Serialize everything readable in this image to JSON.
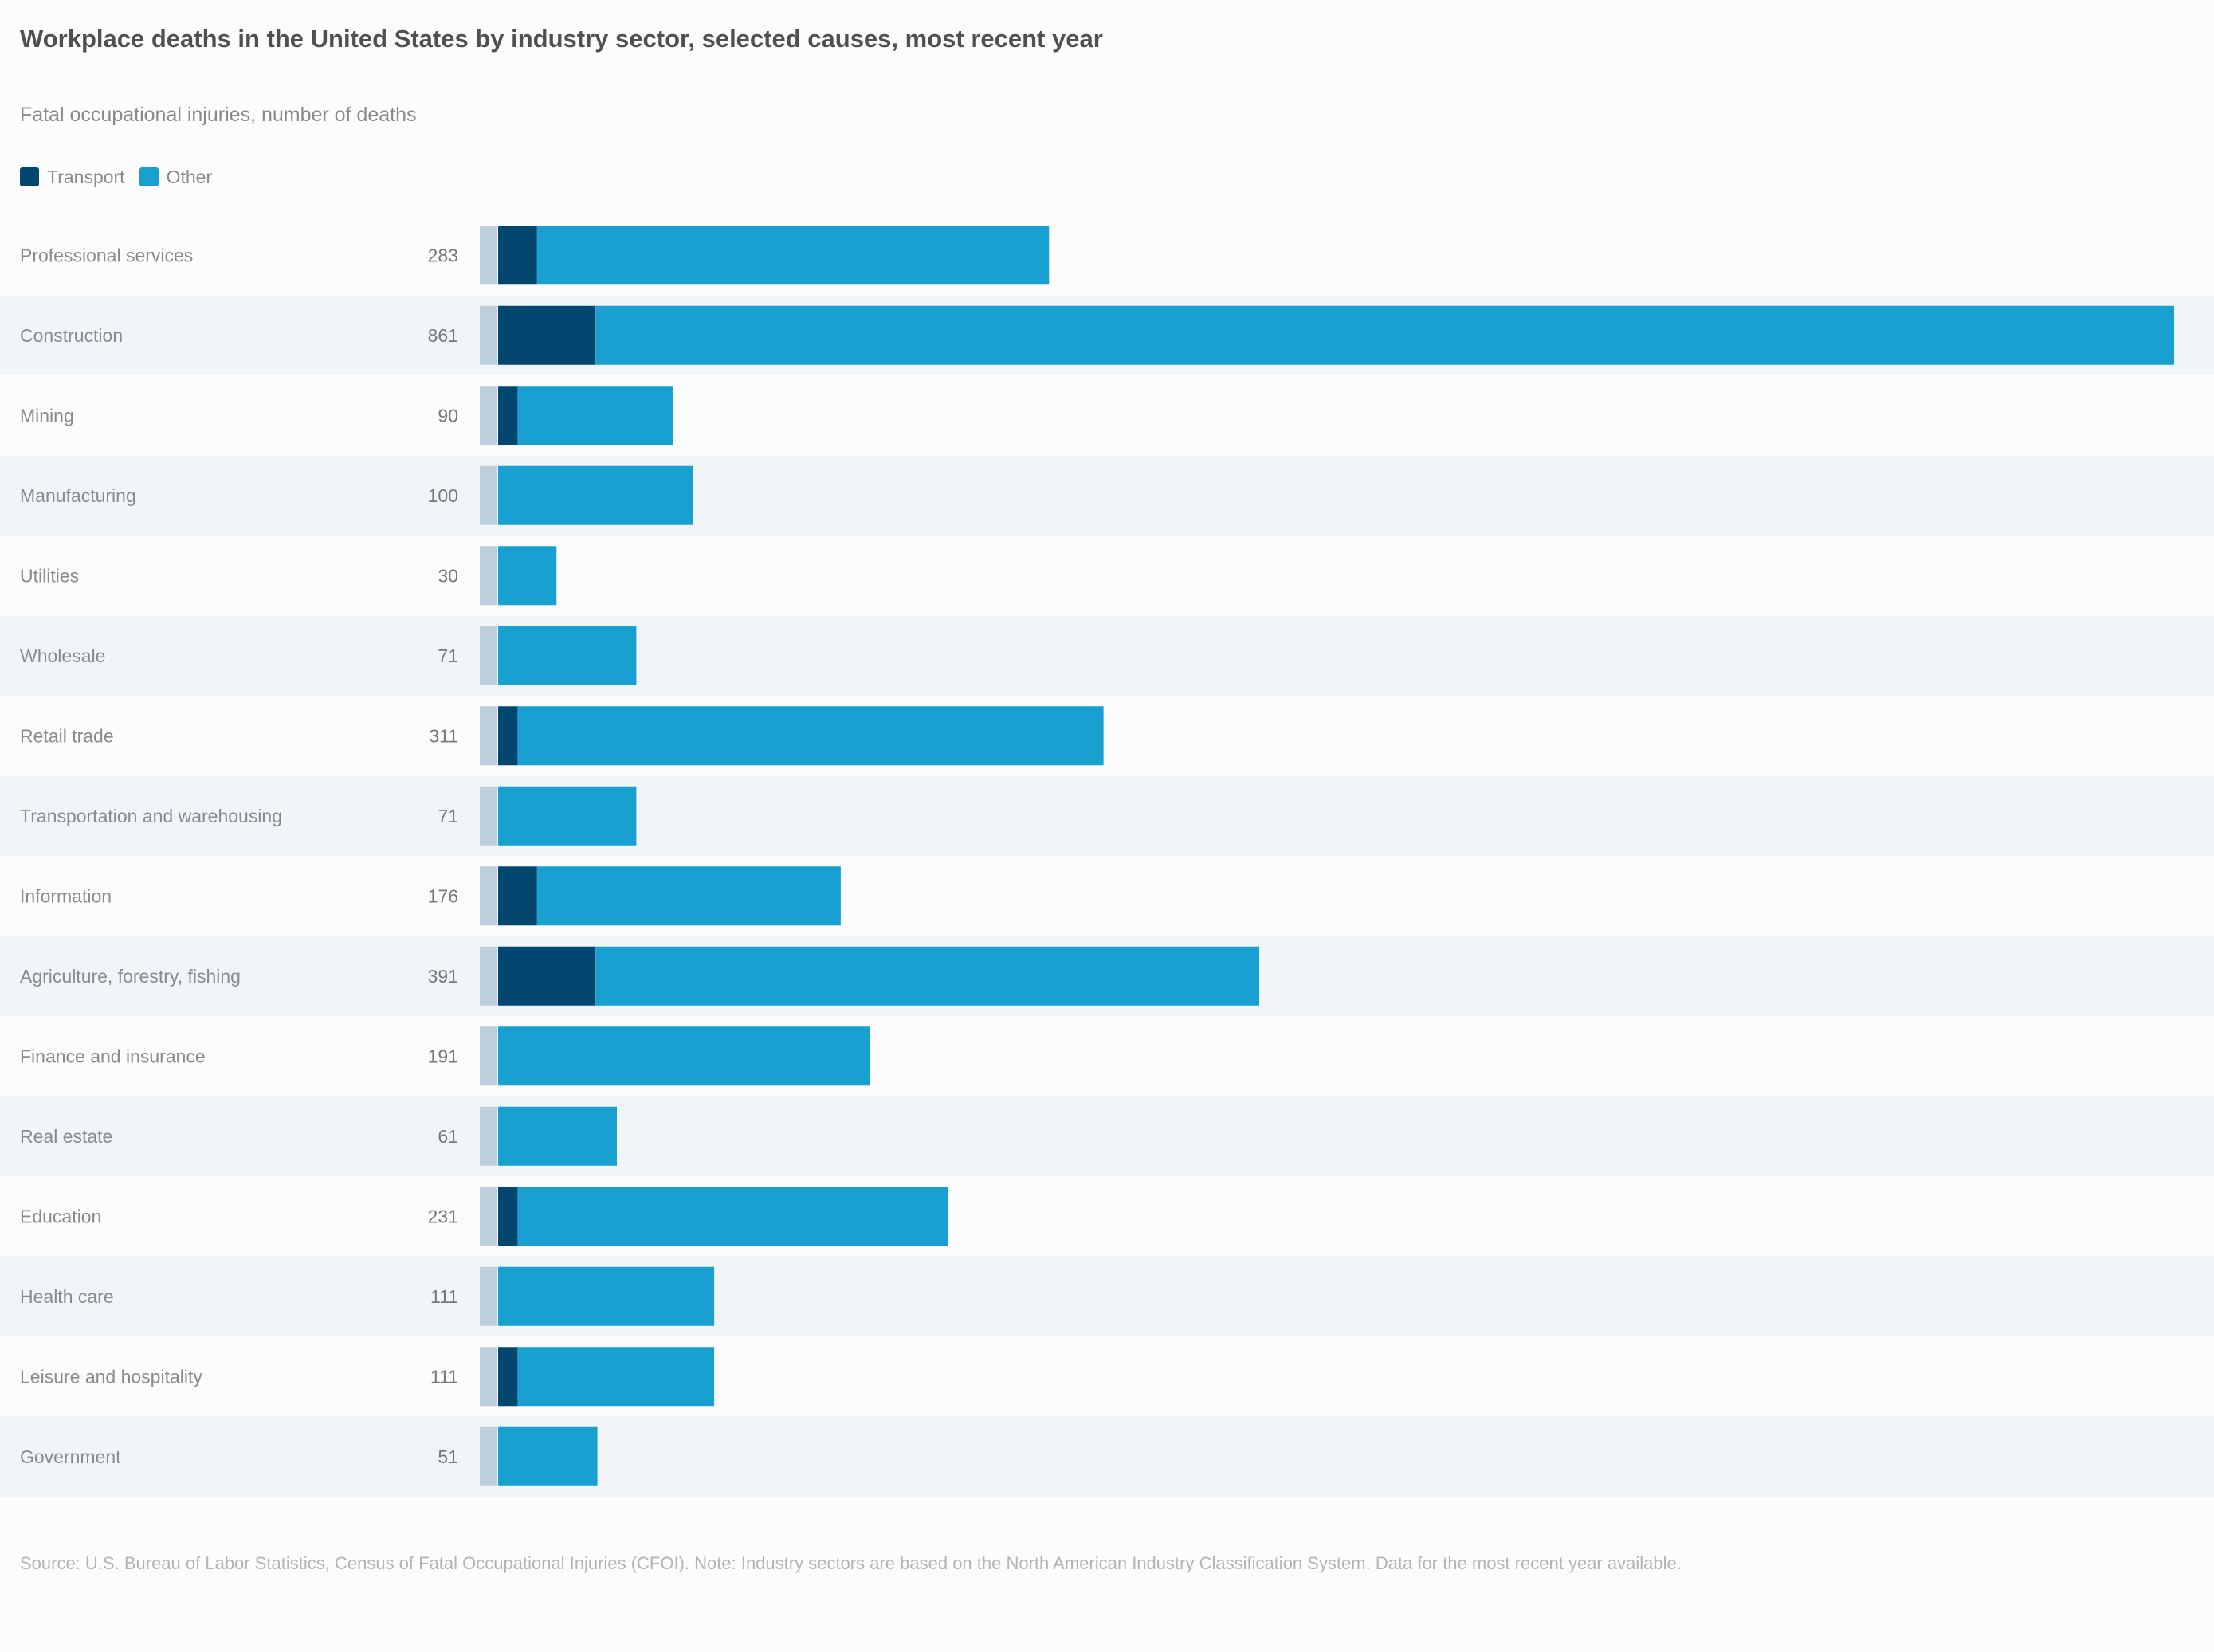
{
  "chart_data": {
    "type": "bar",
    "orientation": "horizontal",
    "title": "Workplace deaths in the United States by industry sector, selected causes, most recent year",
    "subtitle": "Fatal occupational injuries, number of deaths",
    "legend": {
      "placement": "top-left",
      "items": [
        "Transport",
        "Other"
      ]
    },
    "categories": [
      "Professional services",
      "Construction",
      "Mining",
      "Manufacturing",
      "Utilities",
      "Wholesale",
      "Retail trade",
      "Transportation and warehousing",
      "Information",
      "Agriculture, forestry, fishing",
      "Finance and insurance",
      "Real estate",
      "Education",
      "Health care",
      "Leisure and hospitality",
      "Government"
    ],
    "value_labels": [
      "283",
      "861",
      "90",
      "100",
      "30",
      "71",
      "311",
      "71",
      "176",
      "391",
      "191",
      "61",
      "231",
      "111",
      "111",
      "51"
    ],
    "series": [
      {
        "name": "Transport",
        "values": [
          20,
          50,
          10,
          0,
          0,
          0,
          10,
          0,
          20,
          50,
          0,
          0,
          10,
          0,
          10,
          0
        ]
      },
      {
        "name": "Other",
        "values": [
          263,
          811,
          80,
          100,
          30,
          71,
          301,
          71,
          156,
          341,
          191,
          61,
          221,
          111,
          101,
          51
        ]
      }
    ],
    "xlim": [
      0,
      870
    ],
    "grid": false,
    "colors": {
      "transport": "#03466f",
      "other": "#18a0d0",
      "row_band": "#f2f5f8"
    }
  },
  "source_note": "Source: U.S. Bureau of Labor Statistics, Census of Fatal Occupational Injuries (CFOI). Note: Industry sectors are based on the North American Industry Classification System. Data for the most recent year available."
}
